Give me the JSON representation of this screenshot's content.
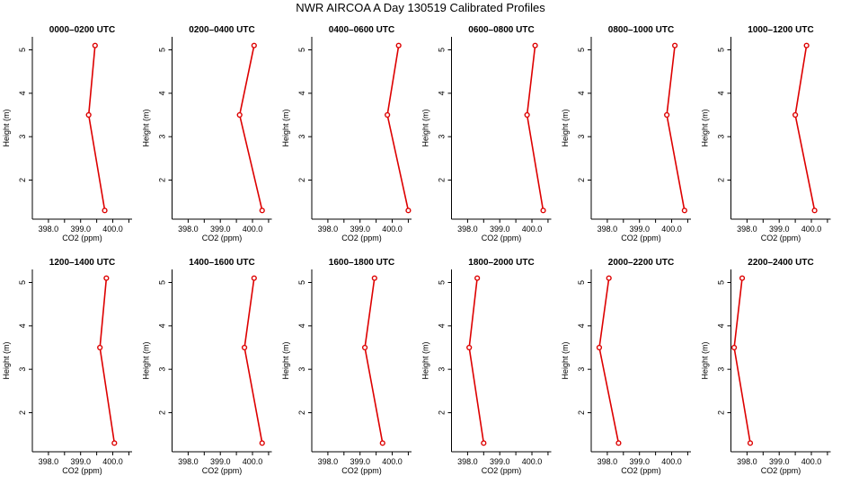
{
  "title": "NWR AIRCOA A  Day 130519  Calibrated Profiles",
  "axis_text": {
    "x": "CO2 (ppm)",
    "y": "Height (m)"
  },
  "x_ticks": [
    "398.0",
    "399.0",
    "400.0"
  ],
  "y_ticks": [
    "2",
    "3",
    "4",
    "5"
  ],
  "colors": {
    "series": "#dd0000",
    "axes": "#000000",
    "background": "#ffffff"
  },
  "chart_data": [
    {
      "type": "line",
      "title": "0000–0200 UTC",
      "xlabel": "CO2 (ppm)",
      "ylabel": "Height (m)",
      "xlim": [
        397.5,
        400.6
      ],
      "ylim": [
        1.1,
        5.3
      ],
      "grid": false,
      "series": [
        {
          "x": [
            399.75,
            399.25,
            399.45
          ],
          "y": [
            1.3,
            3.5,
            5.1
          ]
        }
      ]
    },
    {
      "type": "line",
      "title": "0200–0400 UTC",
      "xlabel": "CO2 (ppm)",
      "ylabel": "Height (m)",
      "xlim": [
        397.5,
        400.6
      ],
      "ylim": [
        1.1,
        5.3
      ],
      "grid": false,
      "series": [
        {
          "x": [
            400.3,
            399.6,
            400.05
          ],
          "y": [
            1.3,
            3.5,
            5.1
          ]
        }
      ]
    },
    {
      "type": "line",
      "title": "0400–0600 UTC",
      "xlabel": "CO2 (ppm)",
      "ylabel": "Height (m)",
      "xlim": [
        397.5,
        400.6
      ],
      "ylim": [
        1.1,
        5.3
      ],
      "grid": false,
      "series": [
        {
          "x": [
            400.5,
            399.85,
            400.2
          ],
          "y": [
            1.3,
            3.5,
            5.1
          ]
        }
      ]
    },
    {
      "type": "line",
      "title": "0600–0800 UTC",
      "xlabel": "CO2 (ppm)",
      "ylabel": "Height (m)",
      "xlim": [
        397.5,
        400.6
      ],
      "ylim": [
        1.1,
        5.3
      ],
      "grid": false,
      "series": [
        {
          "x": [
            400.35,
            399.85,
            400.1
          ],
          "y": [
            1.3,
            3.5,
            5.1
          ]
        }
      ]
    },
    {
      "type": "line",
      "title": "0800–1000 UTC",
      "xlabel": "CO2 (ppm)",
      "ylabel": "Height (m)",
      "xlim": [
        397.5,
        400.6
      ],
      "ylim": [
        1.1,
        5.3
      ],
      "grid": false,
      "series": [
        {
          "x": [
            400.4,
            399.85,
            400.1
          ],
          "y": [
            1.3,
            3.5,
            5.1
          ]
        }
      ]
    },
    {
      "type": "line",
      "title": "1000–1200 UTC",
      "xlabel": "CO2 (ppm)",
      "ylabel": "Height (m)",
      "xlim": [
        397.5,
        400.6
      ],
      "ylim": [
        1.1,
        5.3
      ],
      "grid": false,
      "series": [
        {
          "x": [
            400.1,
            399.5,
            399.85
          ],
          "y": [
            1.3,
            3.5,
            5.1
          ]
        }
      ]
    },
    {
      "type": "line",
      "title": "1200–1400 UTC",
      "xlabel": "CO2 (ppm)",
      "ylabel": "Height (m)",
      "xlim": [
        397.5,
        400.6
      ],
      "ylim": [
        1.1,
        5.3
      ],
      "grid": false,
      "series": [
        {
          "x": [
            400.05,
            399.6,
            399.8
          ],
          "y": [
            1.3,
            3.5,
            5.1
          ]
        }
      ]
    },
    {
      "type": "line",
      "title": "1400–1600 UTC",
      "xlabel": "CO2 (ppm)",
      "ylabel": "Height (m)",
      "xlim": [
        397.5,
        400.6
      ],
      "ylim": [
        1.1,
        5.3
      ],
      "grid": false,
      "series": [
        {
          "x": [
            400.3,
            399.75,
            400.05
          ],
          "y": [
            1.3,
            3.5,
            5.1
          ]
        }
      ]
    },
    {
      "type": "line",
      "title": "1600–1800 UTC",
      "xlabel": "CO2 (ppm)",
      "ylabel": "Height (m)",
      "xlim": [
        397.5,
        400.6
      ],
      "ylim": [
        1.1,
        5.3
      ],
      "grid": false,
      "series": [
        {
          "x": [
            399.7,
            399.15,
            399.45
          ],
          "y": [
            1.3,
            3.5,
            5.1
          ]
        }
      ]
    },
    {
      "type": "line",
      "title": "1800–2000 UTC",
      "xlabel": "CO2 (ppm)",
      "ylabel": "Height (m)",
      "xlim": [
        397.5,
        400.6
      ],
      "ylim": [
        1.1,
        5.3
      ],
      "grid": false,
      "series": [
        {
          "x": [
            398.5,
            398.05,
            398.3
          ],
          "y": [
            1.3,
            3.5,
            5.1
          ]
        }
      ]
    },
    {
      "type": "line",
      "title": "2000–2200 UTC",
      "xlabel": "CO2 (ppm)",
      "ylabel": "Height (m)",
      "xlim": [
        397.5,
        400.6
      ],
      "ylim": [
        1.1,
        5.3
      ],
      "grid": false,
      "series": [
        {
          "x": [
            398.35,
            397.75,
            398.05
          ],
          "y": [
            1.3,
            3.5,
            5.1
          ]
        }
      ]
    },
    {
      "type": "line",
      "title": "2200–2400 UTC",
      "xlabel": "CO2 (ppm)",
      "ylabel": "Height (m)",
      "xlim": [
        397.5,
        400.6
      ],
      "ylim": [
        1.1,
        5.3
      ],
      "grid": false,
      "series": [
        {
          "x": [
            398.1,
            397.6,
            397.85
          ],
          "y": [
            1.3,
            3.5,
            5.1
          ]
        }
      ]
    }
  ]
}
